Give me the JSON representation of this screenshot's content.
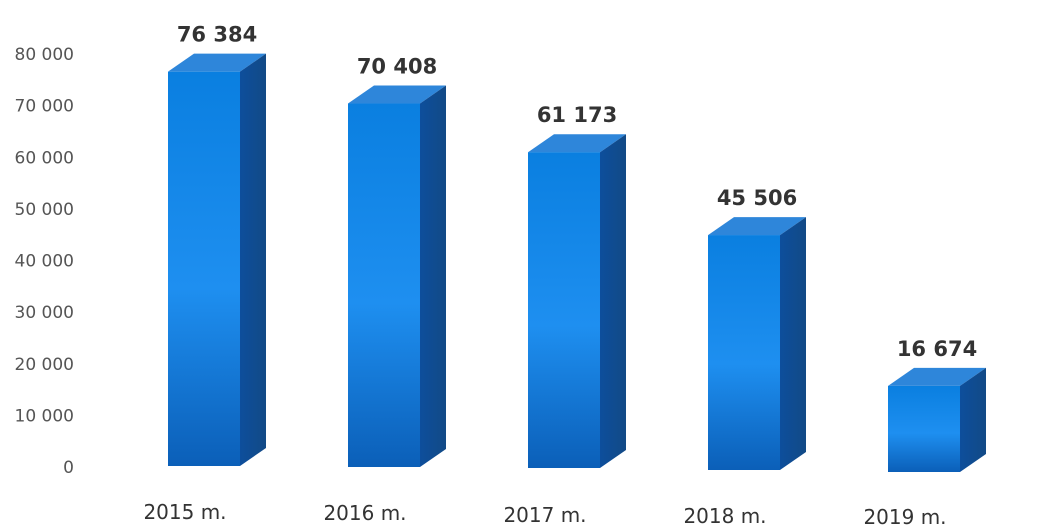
{
  "chart_data": {
    "type": "bar",
    "style": "3d-column",
    "categories": [
      "2015 m.",
      "2016 m.",
      "2017 m.",
      "2018 m.",
      "2019 m."
    ],
    "values": [
      76384,
      70408,
      61173,
      45506,
      16674
    ],
    "data_labels": [
      "76 384",
      "70 408",
      "61 173",
      "45 506",
      "16 674"
    ],
    "yticks": [
      "0",
      "10 000",
      "20 000",
      "30 000",
      "40 000",
      "50 000",
      "60 000",
      "70 000",
      "80 000"
    ],
    "ytick_values": [
      0,
      10000,
      20000,
      30000,
      40000,
      50000,
      60000,
      70000,
      80000
    ],
    "ylim": [
      0,
      80000
    ],
    "title": "",
    "xlabel": "",
    "ylabel": "",
    "grid": false,
    "legend": "none",
    "colors": {
      "front_top": "#0A7FE0",
      "front_mid": "#1E8FF0",
      "front_bottom": "#0B5FB8",
      "side": "#0E4B96",
      "top": "#2E86DA"
    }
  }
}
